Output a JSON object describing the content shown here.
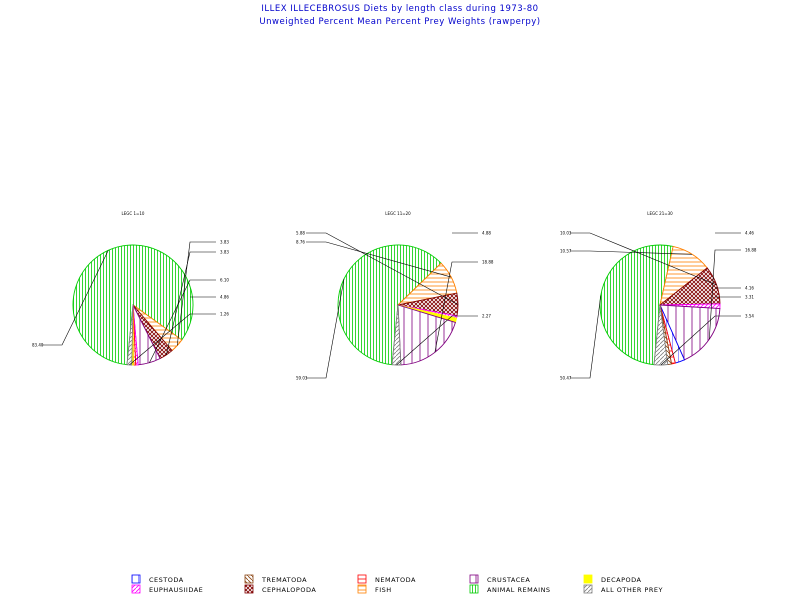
{
  "header": {
    "title": "ILLEX ILLECEBROSUS Diets by length class during 1973-80",
    "subtitle": "Unweighted Percent Mean Percent Prey  Weights (rawperpy)"
  },
  "colors": {
    "cestoda": "#0000ff",
    "euphausiidae": "#ff00ff",
    "trematoda": "#8b4513",
    "cephalopoda": "#800000",
    "nematoda": "#ff0000",
    "fish": "#ff8000",
    "crustacea": "#800080",
    "animal_remains": "#00cc00",
    "decapoda": "#ffff00",
    "all_other_prey": "#808080"
  },
  "chart_data": [
    {
      "type": "pie",
      "title": "LEGC 1=10",
      "slices": [
        {
          "category": "animal_remains",
          "value": 83.4,
          "label": "83.40"
        },
        {
          "category": "fish",
          "value": 3.83,
          "label": "3.83"
        },
        {
          "category": "cephalopoda",
          "value": 3.83,
          "label": "3.83"
        },
        {
          "category": "crustacea",
          "value": 6.1,
          "label": "6.10"
        },
        {
          "category": "euphausiidae",
          "value": 0.64,
          "label": ""
        },
        {
          "category": "nematoda",
          "value": 0.64,
          "label": ""
        },
        {
          "category": "decapoda",
          "value": 0.42,
          "label": ""
        },
        {
          "category": "all_other_prey",
          "value": 1.26,
          "label": "1.26"
        }
      ],
      "extra_labels": [
        {
          "text": "4.86"
        }
      ]
    },
    {
      "type": "pie",
      "title": "LEGC 11=20",
      "slices": [
        {
          "category": "animal_remains",
          "value": 59.03,
          "label": "59.03"
        },
        {
          "category": "fish",
          "value": 8.76,
          "label": "8.76"
        },
        {
          "category": "cephalopoda",
          "value": 5.88,
          "label": "5.88"
        },
        {
          "category": "euphausiidae",
          "value": 0.6,
          "label": ""
        },
        {
          "category": "decapoda",
          "value": 1.1,
          "label": ""
        },
        {
          "category": "crustacea",
          "value": 18.88,
          "label": "18.88"
        },
        {
          "category": "all_other_prey",
          "value": 2.27,
          "label": "2.27"
        }
      ],
      "extra_labels": [
        {
          "text": "4.88"
        }
      ]
    },
    {
      "type": "pie",
      "title": "LEGC 21=30",
      "slices": [
        {
          "category": "animal_remains",
          "value": 50.47,
          "label": "50.47"
        },
        {
          "category": "fish",
          "value": 10.57,
          "label": "10.57"
        },
        {
          "category": "cephalopoda",
          "value": 10.03,
          "label": "10.03"
        },
        {
          "category": "euphausiidae",
          "value": 1.2,
          "label": ""
        },
        {
          "category": "crustacea",
          "value": 16.88,
          "label": "16.88"
        },
        {
          "category": "cestoda",
          "value": 2.5,
          "label": ""
        },
        {
          "category": "nematoda",
          "value": 1.0,
          "label": ""
        },
        {
          "category": "trematoda",
          "value": 1.0,
          "label": ""
        },
        {
          "category": "all_other_prey",
          "value": 3.54,
          "label": "3.54"
        }
      ],
      "extra_labels": [
        {
          "text": "4.46"
        },
        {
          "text": "4.16"
        },
        {
          "text": "3.31"
        }
      ]
    }
  ],
  "legend": {
    "items": [
      {
        "key": "cestoda",
        "label": "CESTODA"
      },
      {
        "key": "euphausiidae",
        "label": "EUPHAUSIIDAE"
      },
      {
        "key": "trematoda",
        "label": "TREMATODA"
      },
      {
        "key": "cephalopoda",
        "label": "CEPHALOPODA"
      },
      {
        "key": "nematoda",
        "label": "NEMATODA"
      },
      {
        "key": "fish",
        "label": "FISH"
      },
      {
        "key": "crustacea",
        "label": "CRUSTACEA"
      },
      {
        "key": "animal_remains",
        "label": "ANIMAL REMAINS"
      },
      {
        "key": "decapoda",
        "label": "DECAPODA"
      },
      {
        "key": "all_other_prey",
        "label": "ALL OTHER PREY"
      }
    ]
  }
}
